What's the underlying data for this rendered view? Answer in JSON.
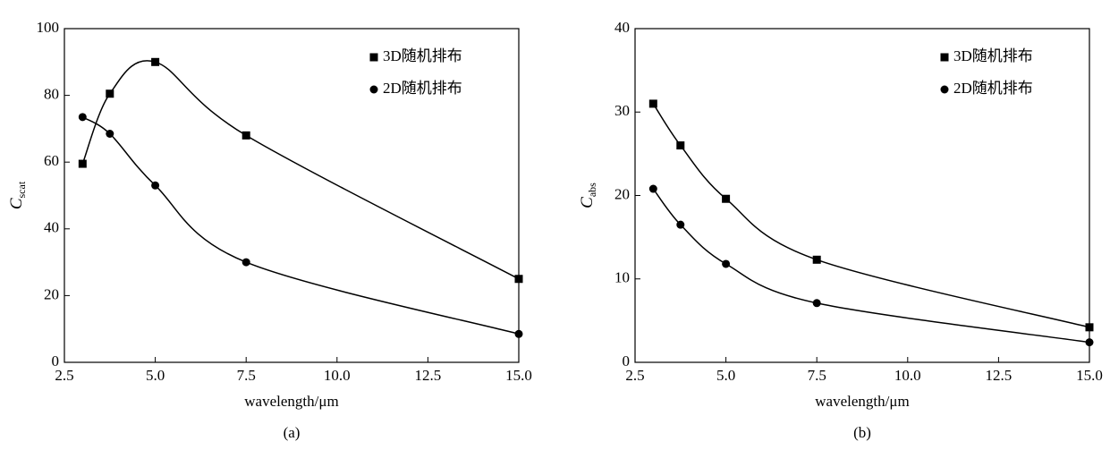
{
  "chart_data": [
    {
      "type": "line",
      "x_label": "wavelength/μm",
      "y_label": "C",
      "y_label_sub": "scat",
      "caption": "(a)",
      "x": [
        3,
        3.75,
        5,
        7.5,
        15
      ],
      "series": [
        {
          "name": "3D随机排布",
          "marker": "square",
          "color": "#000000",
          "values": [
            59.5,
            80.5,
            90,
            68,
            25
          ]
        },
        {
          "name": "2D随机排布",
          "marker": "circle",
          "color": "#000000",
          "values": [
            73.5,
            68.5,
            53,
            30,
            8.5
          ]
        }
      ],
      "xlim": [
        2.5,
        15
      ],
      "xticks": [
        2.5,
        {
          "value": 5,
          "label": "5.0"
        },
        7.5,
        {
          "value": 10,
          "label": "10.0"
        },
        12.5,
        {
          "value": 15,
          "label": "15.0"
        }
      ],
      "ylim": [
        0,
        100
      ],
      "yticks": [
        0,
        20,
        40,
        60,
        80,
        100
      ],
      "legend": "upper right"
    },
    {
      "type": "line",
      "x_label": "wavelength/μm",
      "y_label": "C",
      "y_label_sub": "abs",
      "caption": "(b)",
      "x": [
        3,
        3.75,
        5,
        7.5,
        15
      ],
      "series": [
        {
          "name": "3D随机排布",
          "marker": "square",
          "color": "#000000",
          "values": [
            31,
            26,
            19.6,
            12.3,
            4.2
          ]
        },
        {
          "name": "2D随机排布",
          "marker": "circle",
          "color": "#000000",
          "values": [
            20.8,
            16.5,
            11.8,
            7.1,
            2.4
          ]
        }
      ],
      "xlim": [
        2.5,
        15
      ],
      "xticks": [
        2.5,
        {
          "value": 5,
          "label": "5.0"
        },
        7.5,
        {
          "value": 10,
          "label": "10.0"
        },
        12.5,
        {
          "value": 15,
          "label": "15.0"
        }
      ],
      "ylim": [
        0,
        40
      ],
      "yticks": [
        0,
        10,
        20,
        30,
        40
      ],
      "legend": "upper right"
    }
  ]
}
